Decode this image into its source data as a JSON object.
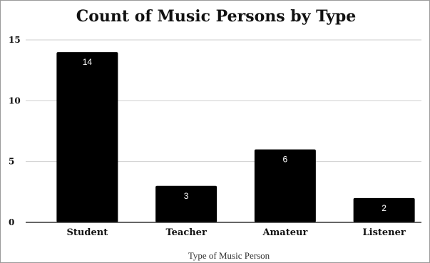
{
  "chart_data": {
    "type": "bar",
    "title": "Count of Music Persons by Type",
    "xlabel": "Type of Music Person",
    "ylabel": "",
    "categories": [
      "Student",
      "Teacher",
      "Amateur",
      "Listener"
    ],
    "values": [
      14,
      3,
      6,
      2
    ],
    "data_labels": [
      "14",
      "3",
      "6",
      "2"
    ],
    "ylim": [
      0,
      15
    ],
    "yticks": [
      0,
      5,
      10,
      15
    ],
    "ytick_labels": [
      "0",
      "5",
      "10",
      "15"
    ],
    "grid": true,
    "legend": "none",
    "bar_color": "#000000",
    "data_label_color": "#ffffff"
  }
}
